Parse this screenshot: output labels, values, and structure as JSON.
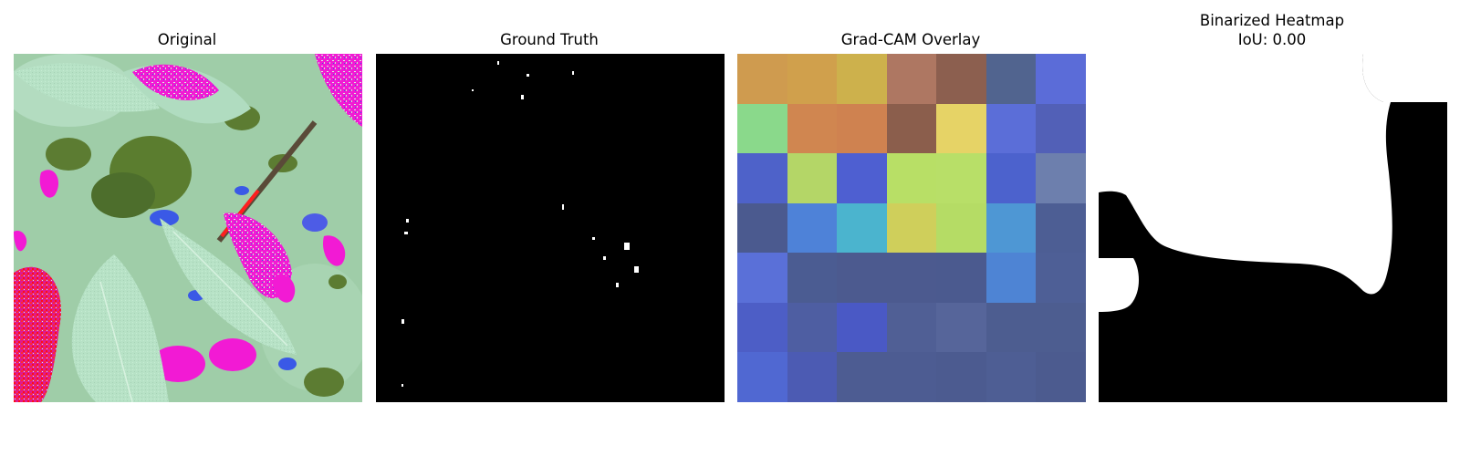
{
  "panels": {
    "original": {
      "title": "Original"
    },
    "ground_truth": {
      "title": "Ground Truth"
    },
    "gradcam": {
      "title": "Grad-CAM Overlay"
    },
    "binarized": {
      "title": "Binarized Heatmap",
      "iou_label": "IoU: 0.00"
    }
  },
  "gradcam_cells": [
    [
      "#cf9b4f",
      "#d0a04c",
      "#cdb14c",
      "#ae7762",
      "#8c5f4f",
      "#51648f",
      "#5b6cd8"
    ],
    [
      "#8ad98b",
      "#d08650",
      "#cf8250",
      "#8b5e4c",
      "#e6d366",
      "#5b6ed8",
      "#5260b7"
    ],
    [
      "#4e62c9",
      "#b4d667",
      "#4e5fd1",
      "#b8df66",
      "#b8df68",
      "#4c62cd",
      "#6d7fad"
    ],
    [
      "#4b5a8f",
      "#4e82d8",
      "#4bb4ce",
      "#cfcf5b",
      "#b5dc65",
      "#4e97d4",
      "#4d5e94"
    ],
    [
      "#5a70d8",
      "#4b5c92",
      "#4c5a8f",
      "#4c5a8f",
      "#4b5a8f",
      "#4e84d4",
      "#4e5f96"
    ],
    [
      "#4d5ec6",
      "#4e5ea2",
      "#4a59c5",
      "#505f95",
      "#56659a",
      "#4d5d90",
      "#4d5d90"
    ],
    [
      "#5068d2",
      "#4c5bb3",
      "#4d5c92",
      "#4d5c92",
      "#4c5b90",
      "#4e5e94",
      "#4c5b8f"
    ]
  ],
  "colors": {
    "mask_bg": "#000000",
    "mask_fg": "#ffffff"
  }
}
